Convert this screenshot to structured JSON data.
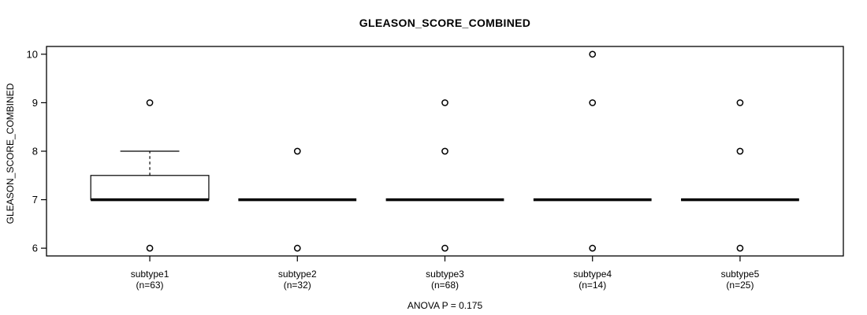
{
  "chart_data": {
    "type": "boxplot",
    "title": "GLEASON_SCORE_COMBINED",
    "ylabel": "GLEASON_SCORE_COMBINED",
    "xlabel": "",
    "annotation": "ANOVA P = 0.175",
    "ylim": [
      5.84,
      10.16
    ],
    "yticks": [
      6,
      7,
      8,
      9,
      10
    ],
    "grid": false,
    "legend": "none",
    "colors": {
      "foreground": "#000000",
      "background": "#ffffff"
    },
    "groups": [
      {
        "label": "subtype1",
        "sublabel": "(n=63)",
        "n": 63,
        "q1": 7,
        "median": 7,
        "q3": 7.5,
        "whisker_low": 7,
        "whisker_high": 8,
        "outliers": [
          9,
          6
        ]
      },
      {
        "label": "subtype2",
        "sublabel": "(n=32)",
        "n": 32,
        "q1": 7,
        "median": 7,
        "q3": 7,
        "whisker_low": 7,
        "whisker_high": 7,
        "outliers": [
          8,
          6
        ]
      },
      {
        "label": "subtype3",
        "sublabel": "(n=68)",
        "n": 68,
        "q1": 7,
        "median": 7,
        "q3": 7,
        "whisker_low": 7,
        "whisker_high": 7,
        "outliers": [
          9,
          8,
          6
        ]
      },
      {
        "label": "subtype4",
        "sublabel": "(n=14)",
        "n": 14,
        "q1": 7,
        "median": 7,
        "q3": 7,
        "whisker_low": 7,
        "whisker_high": 7,
        "outliers": [
          10,
          9,
          6
        ]
      },
      {
        "label": "subtype5",
        "sublabel": "(n=25)",
        "n": 25,
        "q1": 7,
        "median": 7,
        "q3": 7,
        "whisker_low": 7,
        "whisker_high": 7,
        "outliers": [
          9,
          8,
          6
        ]
      }
    ]
  }
}
